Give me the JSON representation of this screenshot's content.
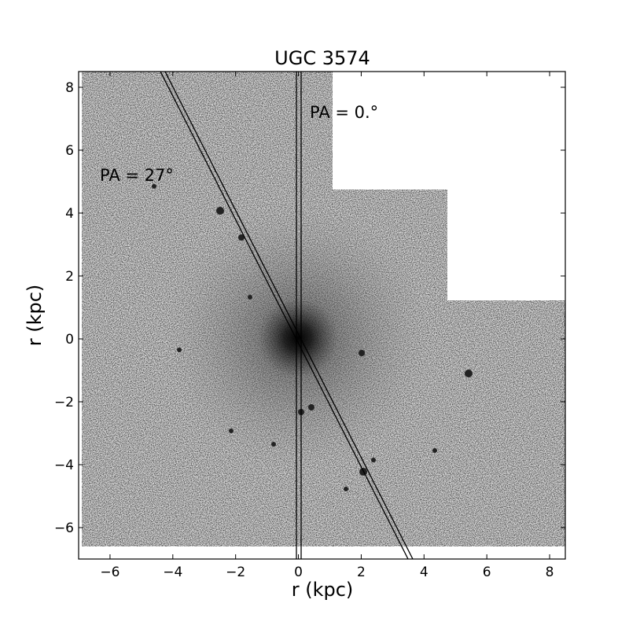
{
  "chart_data": {
    "type": "image",
    "title": "UGC 3574",
    "xlabel": "r (kpc)",
    "ylabel": "r (kpc)",
    "xlim": [
      -7,
      8.5
    ],
    "ylim": [
      -7,
      8.5
    ],
    "xticks": [
      {
        "value": -6,
        "label": "−6"
      },
      {
        "value": -4,
        "label": "−4"
      },
      {
        "value": -2,
        "label": "−2"
      },
      0,
      2,
      4,
      6,
      8
    ],
    "yticks": [
      {
        "value": -6,
        "label": "−6"
      },
      {
        "value": -4,
        "label": "−4"
      },
      {
        "value": -2,
        "label": "−2"
      },
      0,
      2,
      4,
      6,
      8
    ],
    "annotations": [
      "PA = 27°",
      "PA = 0.°"
    ]
  }
}
